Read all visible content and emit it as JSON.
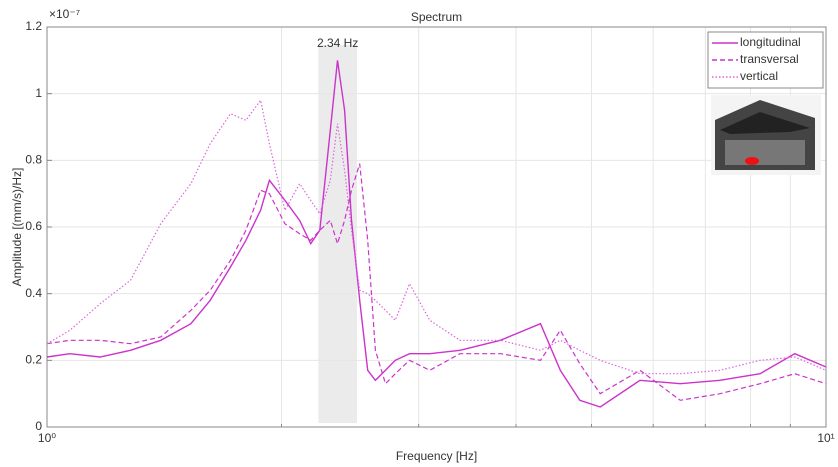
{
  "chart_data": {
    "type": "line",
    "title": "Spectrum",
    "xlabel": "Frequency [Hz]",
    "ylabel": "Amplitude [(mm/s)/Hz]",
    "y_exponent_label": "×10⁻⁷",
    "annotation": "2.34 Hz",
    "highlight_band": [
      2.23,
      2.5
    ],
    "xscale": "log",
    "grid": true,
    "legend": "top-right",
    "xlim": [
      1,
      10
    ],
    "xticks": [
      {
        "value": 1,
        "label": "10⁰"
      },
      {
        "value": 10,
        "label": "10¹"
      }
    ],
    "xminorticks": [
      2,
      3,
      4,
      5,
      6,
      7,
      8,
      9
    ],
    "ylim": [
      0,
      1.2
    ],
    "yticks": [
      0,
      0.2,
      0.4,
      0.6,
      0.8,
      1,
      1.2
    ],
    "x": [
      1.0,
      1.07,
      1.17,
      1.28,
      1.4,
      1.53,
      1.62,
      1.72,
      1.8,
      1.88,
      1.93,
      2.02,
      2.11,
      2.18,
      2.24,
      2.31,
      2.36,
      2.41,
      2.46,
      2.52,
      2.58,
      2.64,
      2.72,
      2.8,
      2.92,
      3.1,
      3.39,
      3.82,
      4.3,
      4.56,
      4.83,
      5.13,
      5.77,
      6.5,
      7.31,
      8.23,
      9.12,
      10.0
    ],
    "series": [
      {
        "name": "longitudinal",
        "color": "#cc33cc",
        "style": "solid",
        "values": [
          0.21,
          0.22,
          0.21,
          0.23,
          0.26,
          0.31,
          0.38,
          0.48,
          0.56,
          0.65,
          0.74,
          0.68,
          0.62,
          0.55,
          0.59,
          0.89,
          1.1,
          0.95,
          0.62,
          0.38,
          0.17,
          0.14,
          0.17,
          0.2,
          0.22,
          0.22,
          0.23,
          0.26,
          0.31,
          0.17,
          0.08,
          0.06,
          0.14,
          0.13,
          0.14,
          0.16,
          0.22,
          0.18
        ]
      },
      {
        "name": "transversal",
        "color": "#cc33cc",
        "style": "dashed",
        "values": [
          0.25,
          0.26,
          0.26,
          0.25,
          0.27,
          0.35,
          0.41,
          0.5,
          0.59,
          0.71,
          0.7,
          0.61,
          0.58,
          0.56,
          0.59,
          0.62,
          0.55,
          0.62,
          0.71,
          0.79,
          0.56,
          0.23,
          0.13,
          0.16,
          0.2,
          0.17,
          0.22,
          0.22,
          0.2,
          0.29,
          0.19,
          0.1,
          0.17,
          0.08,
          0.1,
          0.13,
          0.16,
          0.13
        ]
      },
      {
        "name": "vertical",
        "color": "#dd66dd",
        "style": "dotted",
        "values": [
          0.25,
          0.29,
          0.37,
          0.44,
          0.61,
          0.73,
          0.85,
          0.94,
          0.92,
          0.98,
          0.85,
          0.65,
          0.73,
          0.68,
          0.64,
          0.74,
          0.91,
          0.77,
          0.59,
          0.41,
          0.4,
          0.38,
          0.35,
          0.32,
          0.43,
          0.32,
          0.26,
          0.26,
          0.23,
          0.26,
          0.23,
          0.2,
          0.16,
          0.16,
          0.17,
          0.2,
          0.21,
          0.17
        ]
      }
    ]
  }
}
